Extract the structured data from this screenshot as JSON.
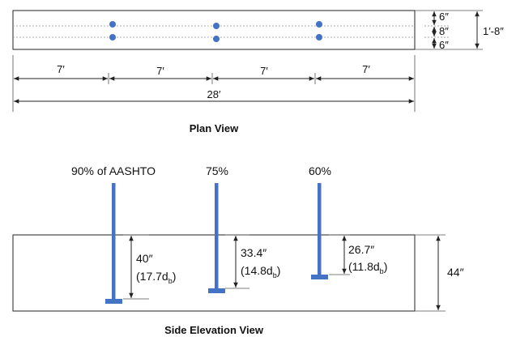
{
  "plan_view": {
    "caption": "Plan View",
    "transverse_dims": [
      "6″",
      "8″",
      "6″"
    ],
    "overall_width": "1′-8″",
    "spacing_dims": [
      "7′",
      "7′",
      "7′",
      "7′"
    ],
    "overall_length": "28′"
  },
  "elevation_view": {
    "caption": "Side Elevation View",
    "depth": "44″",
    "bars": [
      {
        "label": "90% of AASHTO",
        "embed": "40″",
        "embed_db_open": "(17.7d",
        "embed_db_close": ")"
      },
      {
        "label": "75%",
        "embed": "33.4″",
        "embed_db_open": "(14.8d",
        "embed_db_close": ")"
      },
      {
        "label": "60%",
        "embed": "26.7″",
        "embed_db_open": "(11.8d",
        "embed_db_close": ")"
      }
    ],
    "subscript": "b"
  },
  "colors": {
    "bar": "#4472c4",
    "line": "#222222"
  }
}
